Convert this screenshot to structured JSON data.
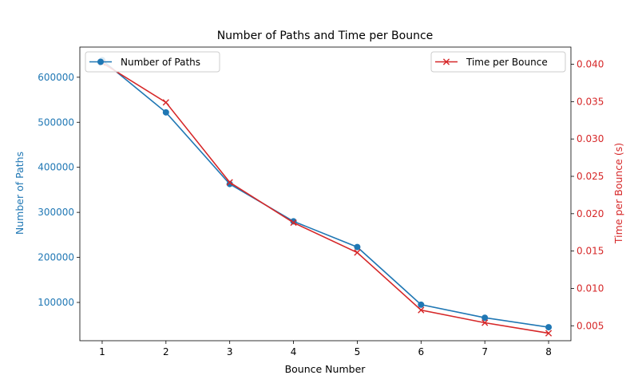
{
  "chart_data": {
    "type": "line",
    "title": "Number of Paths and Time per Bounce",
    "xlabel": "Bounce Number",
    "ylabel_left": "Number of Paths",
    "ylabel_right": "Time per Bounce (s)",
    "x": [
      1,
      2,
      3,
      4,
      5,
      6,
      7,
      8
    ],
    "x_ticks": [
      "1",
      "2",
      "3",
      "4",
      "5",
      "6",
      "7",
      "8"
    ],
    "xlim": [
      0.65,
      8.35
    ],
    "left_axis": {
      "ylim": [
        15000,
        667000
      ],
      "ticks": [
        100000,
        200000,
        300000,
        400000,
        500000,
        600000
      ],
      "tick_labels": [
        "100000",
        "200000",
        "300000",
        "400000",
        "500000",
        "600000"
      ],
      "color": "#1f77b4"
    },
    "right_axis": {
      "ylim": [
        0.003,
        0.0423
      ],
      "ticks": [
        0.005,
        0.01,
        0.015,
        0.02,
        0.025,
        0.03,
        0.035,
        0.04
      ],
      "tick_labels": [
        "0.005",
        "0.010",
        "0.015",
        "0.020",
        "0.025",
        "0.030",
        "0.035",
        "0.040"
      ],
      "color": "#d62728"
    },
    "series": [
      {
        "name": "Number of Paths",
        "axis": "left",
        "color": "#1f77b4",
        "marker": "circle",
        "values": [
          638000,
          522000,
          363000,
          280000,
          223000,
          95000,
          66000,
          45000
        ]
      },
      {
        "name": "Time per Bounce",
        "axis": "right",
        "color": "#d62728",
        "marker": "x",
        "values": [
          0.0402,
          0.0349,
          0.0242,
          0.0188,
          0.0148,
          0.0071,
          0.0054,
          0.004
        ]
      }
    ],
    "legend_left_placement": "upper-left",
    "legend_right_placement": "upper-right",
    "grid": false
  }
}
